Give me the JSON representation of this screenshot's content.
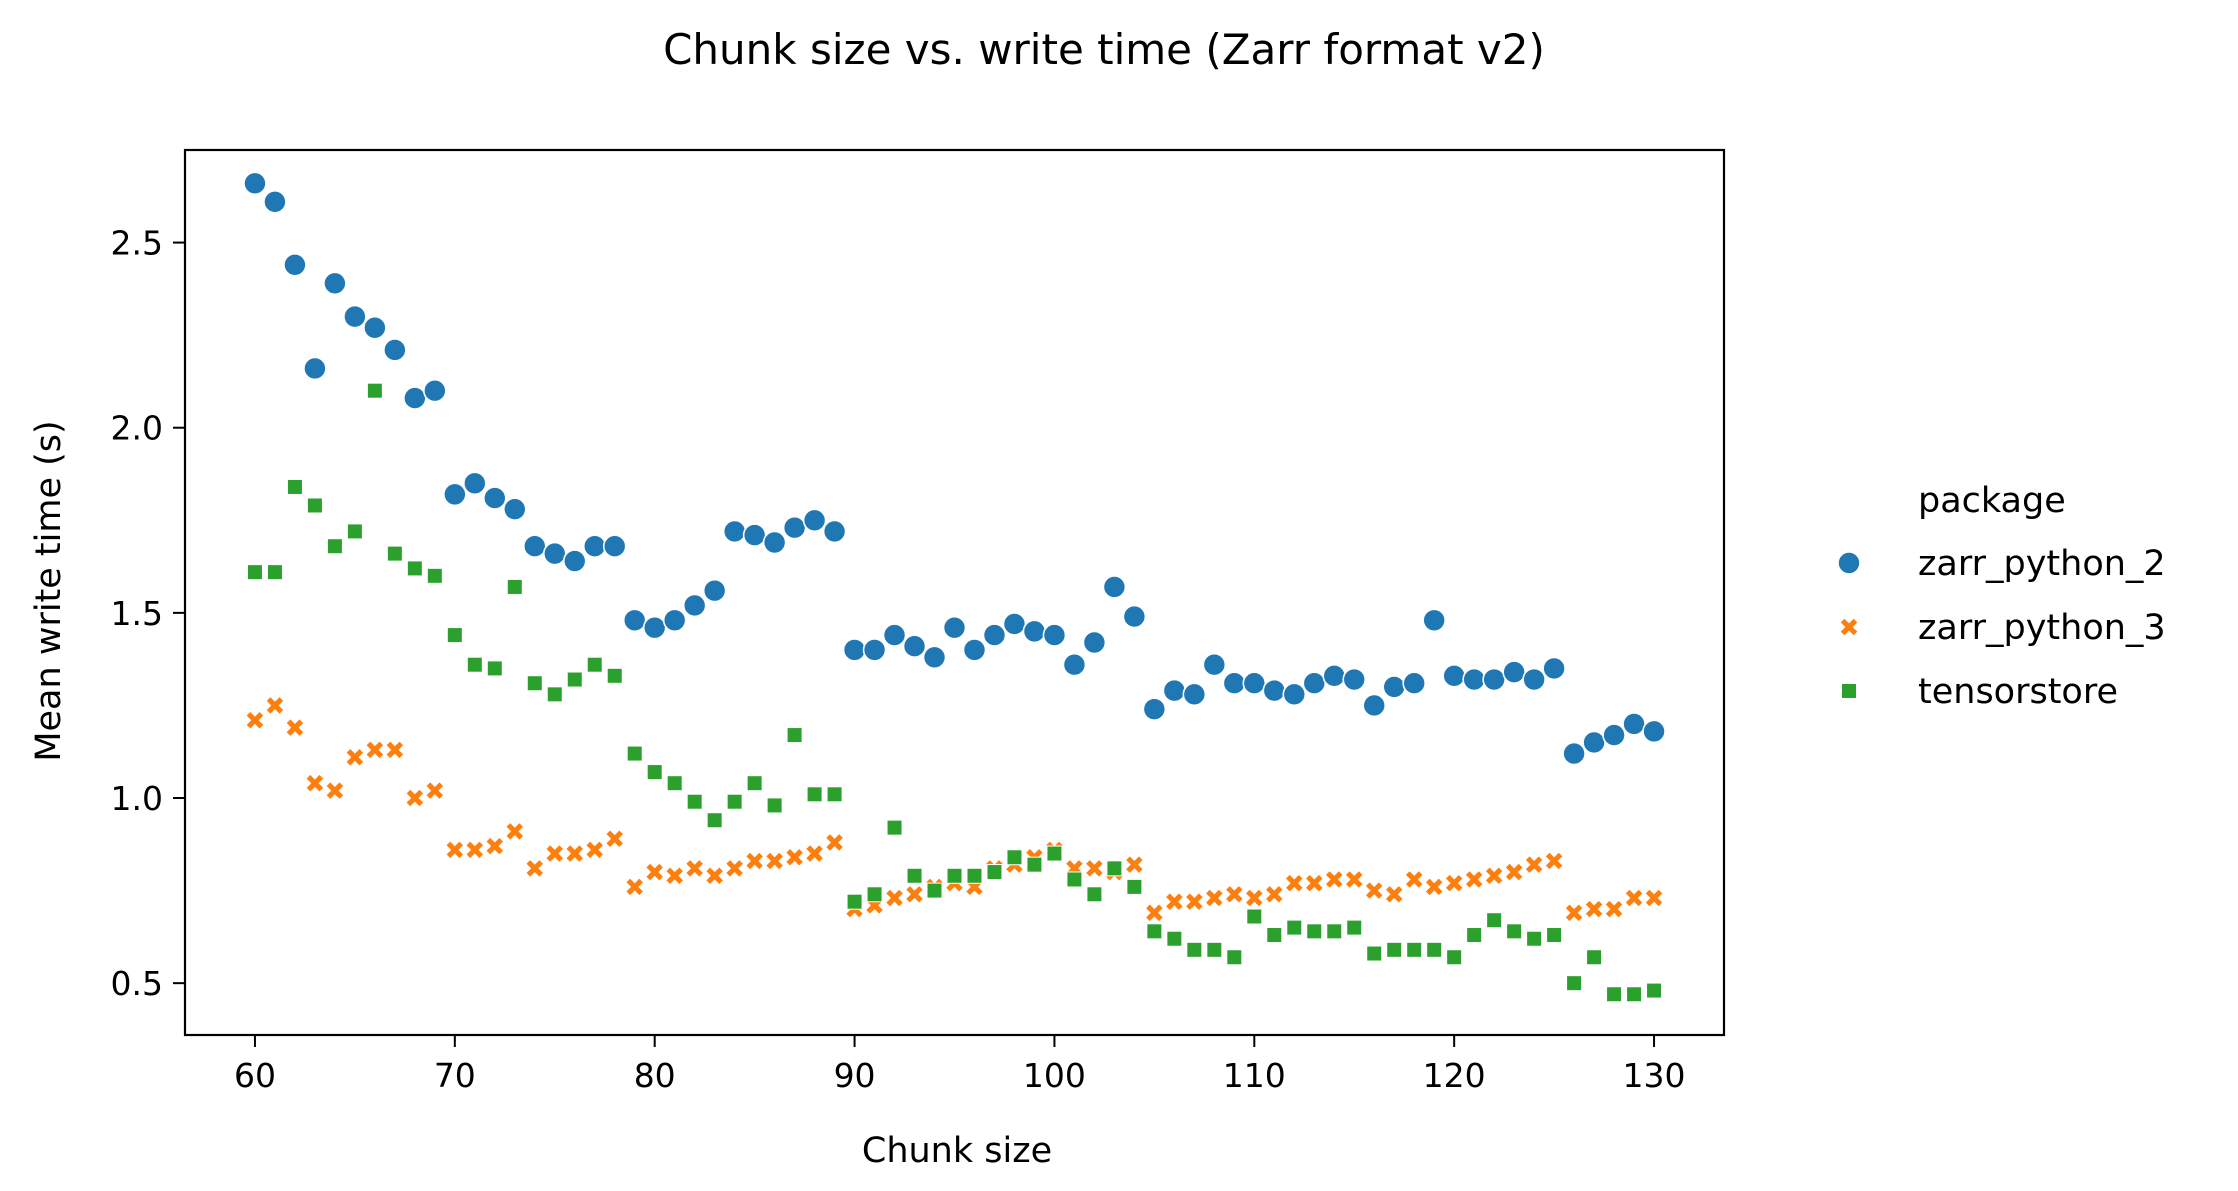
{
  "chart_data": {
    "type": "scatter",
    "title": "Chunk size vs. write time (Zarr format v2)",
    "xlabel": "Chunk size",
    "ylabel": "Mean write time (s)",
    "xlim": [
      56.5,
      133.5
    ],
    "ylim": [
      0.36,
      2.75
    ],
    "xticks": [
      60,
      70,
      80,
      90,
      100,
      110,
      120,
      130
    ],
    "yticks": [
      0.5,
      1.0,
      1.5,
      2.0,
      2.5
    ],
    "xtick_labels": [
      "60",
      "70",
      "80",
      "90",
      "100",
      "110",
      "120",
      "130"
    ],
    "ytick_labels": [
      "0.5",
      "1.0",
      "1.5",
      "2.0",
      "2.5"
    ],
    "grid": false,
    "legend": {
      "title": "package",
      "placement": "right"
    },
    "x": [
      60,
      61,
      62,
      63,
      64,
      65,
      66,
      67,
      68,
      69,
      70,
      71,
      72,
      73,
      74,
      75,
      76,
      77,
      78,
      79,
      80,
      81,
      82,
      83,
      84,
      85,
      86,
      87,
      88,
      89,
      90,
      91,
      92,
      93,
      94,
      95,
      96,
      97,
      98,
      99,
      100,
      101,
      102,
      103,
      104,
      105,
      106,
      107,
      108,
      109,
      110,
      111,
      112,
      113,
      114,
      115,
      116,
      117,
      118,
      119,
      120,
      121,
      122,
      123,
      124,
      125,
      126,
      127,
      128,
      129,
      130
    ],
    "series": [
      {
        "name": "zarr_python_2",
        "color": "#1f77b4",
        "marker": "circle",
        "values": [
          2.66,
          2.61,
          2.44,
          2.16,
          2.39,
          2.3,
          2.27,
          2.21,
          2.08,
          2.1,
          1.82,
          1.85,
          1.81,
          1.78,
          1.68,
          1.66,
          1.64,
          1.68,
          1.68,
          1.48,
          1.46,
          1.48,
          1.52,
          1.56,
          1.72,
          1.71,
          1.69,
          1.73,
          1.75,
          1.72,
          1.4,
          1.4,
          1.44,
          1.41,
          1.38,
          1.46,
          1.4,
          1.44,
          1.47,
          1.45,
          1.44,
          1.36,
          1.42,
          1.57,
          1.49,
          1.24,
          1.29,
          1.28,
          1.36,
          1.31,
          1.31,
          1.29,
          1.28,
          1.31,
          1.33,
          1.32,
          1.25,
          1.3,
          1.31,
          1.48,
          1.33,
          1.32,
          1.32,
          1.34,
          1.32,
          1.35,
          1.12,
          1.15,
          1.17,
          1.2,
          1.18
        ]
      },
      {
        "name": "zarr_python_3",
        "color": "#ff7f0e",
        "marker": "x",
        "values": [
          1.21,
          1.25,
          1.19,
          1.04,
          1.02,
          1.11,
          1.13,
          1.13,
          1.0,
          1.02,
          0.86,
          0.86,
          0.87,
          0.91,
          0.81,
          0.85,
          0.85,
          0.86,
          0.89,
          0.76,
          0.8,
          0.79,
          0.81,
          0.79,
          0.81,
          0.83,
          0.83,
          0.84,
          0.85,
          0.88,
          0.7,
          0.71,
          0.73,
          0.74,
          0.76,
          0.77,
          0.76,
          0.81,
          0.82,
          0.84,
          0.86,
          0.81,
          0.81,
          0.8,
          0.82,
          0.69,
          0.72,
          0.72,
          0.73,
          0.74,
          0.73,
          0.74,
          0.77,
          0.77,
          0.78,
          0.78,
          0.75,
          0.74,
          0.78,
          0.76,
          0.77,
          0.78,
          0.79,
          0.8,
          0.82,
          0.83,
          0.69,
          0.7,
          0.7,
          0.73,
          0.73
        ]
      },
      {
        "name": "tensorstore",
        "color": "#2ca02c",
        "marker": "square",
        "values": [
          1.61,
          1.61,
          1.84,
          1.79,
          1.68,
          1.72,
          2.1,
          1.66,
          1.62,
          1.6,
          1.44,
          1.36,
          1.35,
          1.57,
          1.31,
          1.28,
          1.32,
          1.36,
          1.33,
          1.12,
          1.07,
          1.04,
          0.99,
          0.94,
          0.99,
          1.04,
          0.98,
          1.17,
          1.01,
          1.01,
          0.72,
          0.74,
          0.92,
          0.79,
          0.75,
          0.79,
          0.79,
          0.8,
          0.84,
          0.82,
          0.85,
          0.78,
          0.74,
          0.81,
          0.76,
          0.64,
          0.62,
          0.59,
          0.59,
          0.57,
          0.68,
          0.63,
          0.65,
          0.64,
          0.64,
          0.65,
          0.58,
          0.59,
          0.59,
          0.59,
          0.57,
          0.63,
          0.67,
          0.64,
          0.62,
          0.63,
          0.5,
          0.57,
          0.47,
          0.47,
          0.48
        ]
      }
    ]
  }
}
